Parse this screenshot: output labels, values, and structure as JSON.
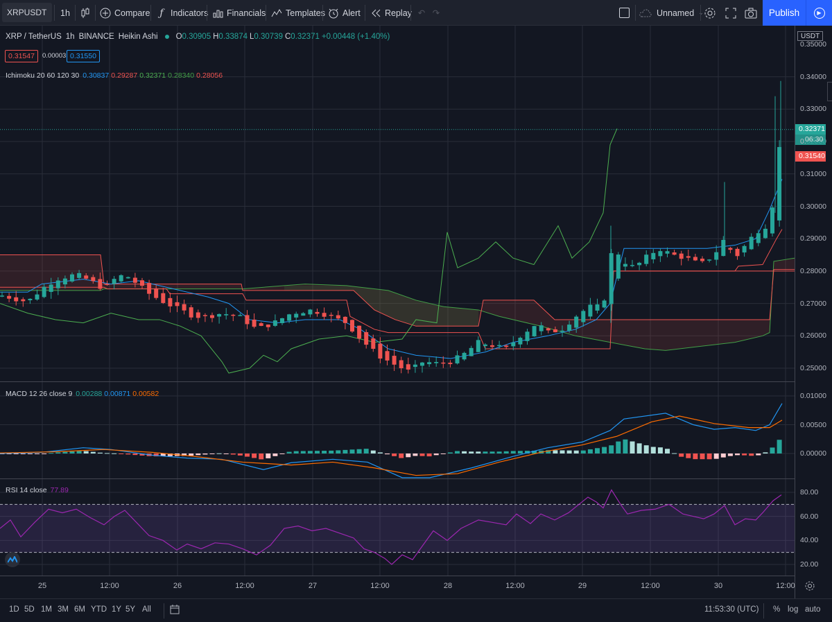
{
  "toolbar": {
    "symbol": "XRPUSDT",
    "interval": "1h",
    "compare": "Compare",
    "indicators": "Indicators",
    "financials": "Financials",
    "templates": "Templates",
    "alert": "Alert",
    "replay": "Replay",
    "layout_name": "Unnamed",
    "publish": "Publish"
  },
  "legend": {
    "title": "XRP / TetherUS",
    "interval": "1h",
    "exchange": "BINANCE",
    "style": "Heikin Ashi",
    "o_label": "O",
    "o": "0.30905",
    "h_label": "H",
    "h": "0.33874",
    "l_label": "L",
    "l": "0.30739",
    "c_label": "C",
    "c": "0.32371",
    "change": "+0.00448 (+1.40%)",
    "sell": "0.31547",
    "spread": "0.00003",
    "buy": "0.31550"
  },
  "ichimoku": {
    "label": "Ichimoku 20 60 120 30",
    "v1": "0.30837",
    "v2": "0.29287",
    "v3": "0.32371",
    "v4": "0.28340",
    "v5": "0.28056"
  },
  "macd": {
    "label": "MACD 12 26 close 9",
    "hist": "0.00288",
    "macd": "0.00871",
    "signal": "0.00582"
  },
  "rsi": {
    "label": "RSI 14 close",
    "value": "77.89"
  },
  "price_axis": {
    "currency": "USDT",
    "labels": [
      "0.35000",
      "0.34000",
      "0.33000",
      "0.32000",
      "0.31000",
      "0.30000",
      "0.29000",
      "0.28000",
      "0.27000",
      "0.26000",
      "0.25000"
    ],
    "last_price": "0.32371",
    "countdown": "06:30",
    "red_price": "0.31540",
    "partial_label": "0."
  },
  "macd_axis": {
    "labels": [
      "0.01000",
      "0.00500",
      "0.00000"
    ]
  },
  "rsi_axis": {
    "labels": [
      "80.00",
      "60.00",
      "40.00",
      "20.00"
    ]
  },
  "time_axis": {
    "labels": [
      "25",
      "12:00",
      "26",
      "12:00",
      "27",
      "12:00",
      "28",
      "12:00",
      "29",
      "12:00",
      "30",
      "12:00"
    ]
  },
  "bottom": {
    "ranges": [
      "1D",
      "5D",
      "1M",
      "3M",
      "6M",
      "YTD",
      "1Y",
      "5Y",
      "All"
    ],
    "clock": "11:53:30 (UTC)",
    "percent": "%",
    "log": "log",
    "auto": "auto"
  },
  "colors": {
    "up": "#26a69a",
    "down": "#ef5350",
    "conversion": "#2196f3",
    "base": "#ef5350",
    "lagging": "#4caf50",
    "span_a": "#43a047",
    "span_b": "#ef5350",
    "macd": "#2196f3",
    "signal": "#ff6d00",
    "rsi": "#9c27b0",
    "accent": "#2962ff"
  }
}
